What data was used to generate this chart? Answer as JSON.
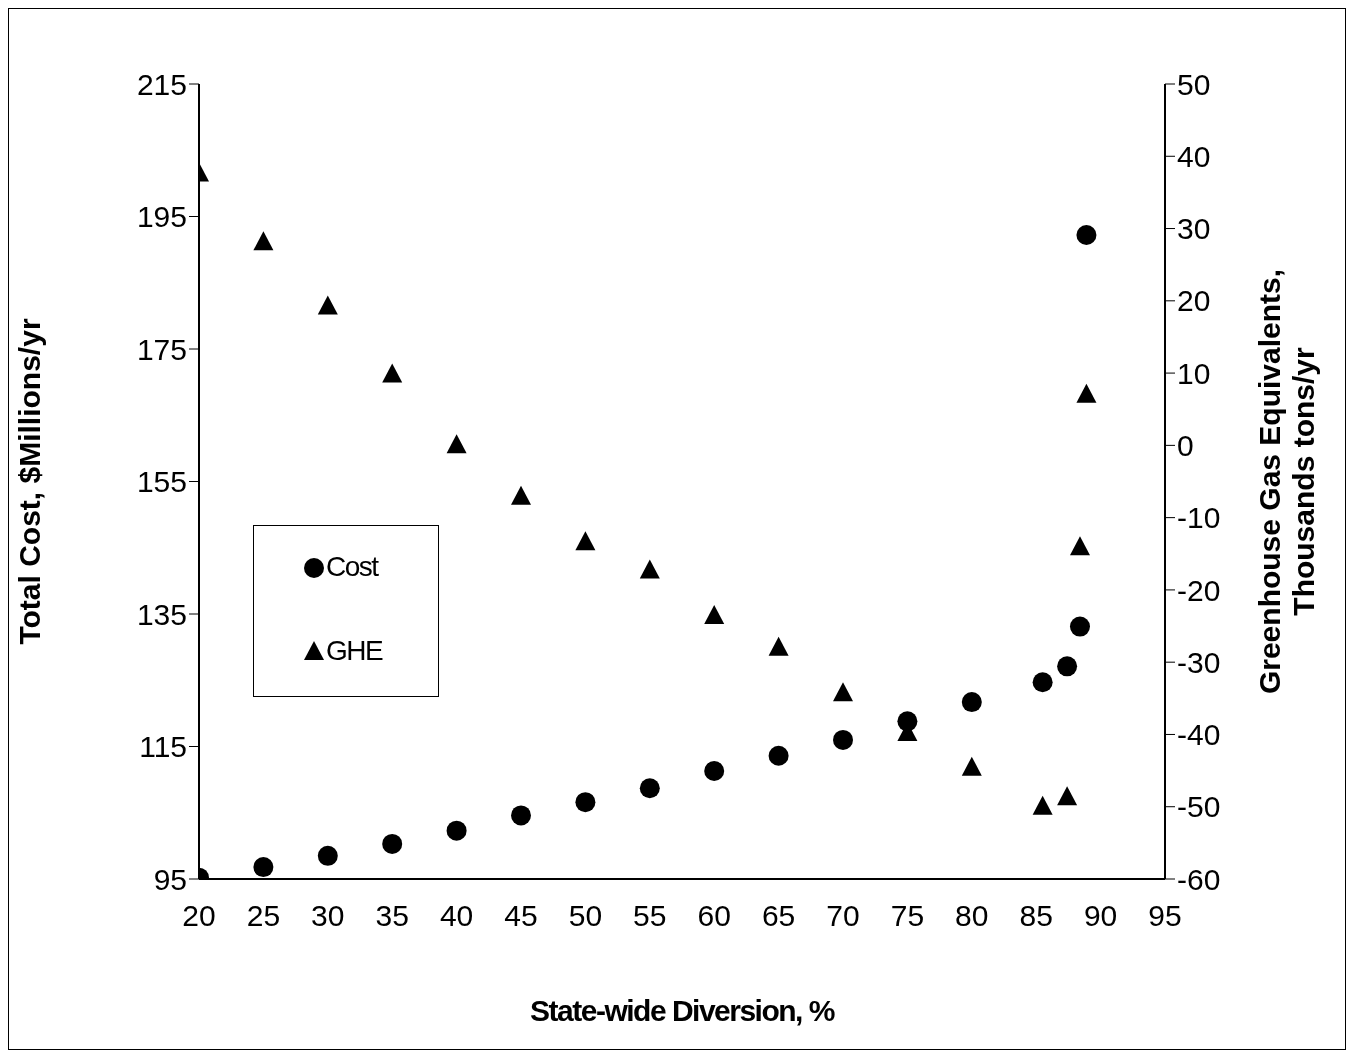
{
  "chart_data": {
    "type": "scatter",
    "xlabel": "State-wide Diversion, %",
    "ylabel": "Total Cost, $Millions/yr",
    "y2label": "Greenhouse Gas Equivalents, Thousands tons/yr",
    "xlim": [
      20,
      95
    ],
    "xticks": [
      20,
      25,
      30,
      35,
      40,
      45,
      50,
      55,
      60,
      65,
      70,
      75,
      80,
      85,
      90,
      95
    ],
    "ylim": [
      95,
      215
    ],
    "yticks": [
      95,
      115,
      135,
      155,
      175,
      195,
      215
    ],
    "y2lim": [
      -60,
      50
    ],
    "y2ticks": [
      -60,
      -50,
      -40,
      -30,
      -20,
      -10,
      0,
      10,
      20,
      30,
      40,
      50
    ],
    "grid": false,
    "legend": "left",
    "series": [
      {
        "name": "Cost",
        "color": "#000000",
        "marker": "circle",
        "x": [
          20,
          25,
          30,
          35,
          40,
          45,
          50,
          55,
          60,
          65,
          70,
          75,
          80,
          85.5,
          87.4,
          88.4,
          88.9
        ],
        "values": [
          95.2,
          96.8,
          98.5,
          100.3,
          102.3,
          104.6,
          106.6,
          108.7,
          111.3,
          113.6,
          116.0,
          118.8,
          121.7,
          124.7,
          127.1,
          133.1,
          192.2
        ]
      },
      {
        "name": "GHE",
        "color": "#000000",
        "marker": "triangle",
        "axis": "y2",
        "x": [
          20,
          25,
          30,
          35,
          40,
          45,
          50,
          55,
          60,
          65,
          70,
          75,
          80,
          85.5,
          87.4,
          88.4,
          88.9
        ],
        "values": [
          37.6,
          28.1,
          19.2,
          9.8,
          0,
          -7.1,
          -13.4,
          -17.3,
          -23.6,
          -28.0,
          -34.3,
          -39.8,
          -44.6,
          -50.0,
          -48.7,
          -14.1,
          7.0
        ]
      }
    ]
  }
}
